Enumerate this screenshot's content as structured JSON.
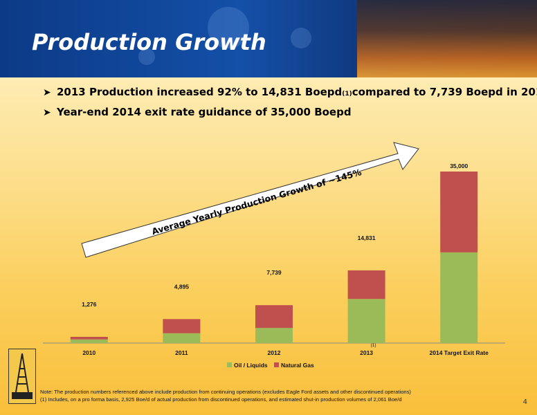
{
  "slide": {
    "title": "Production Growth",
    "page_number": "4"
  },
  "bullets": [
    {
      "text_before": "2013 Production increased 92% to 14,831 Boepd",
      "sup": "(1)",
      "text_after": " compared to 7,739 Boepd in 2012"
    },
    {
      "text_before": "Year-end 2014 exit rate guidance of 35,000 Boepd",
      "sup": "",
      "text_after": ""
    }
  ],
  "notes": {
    "line1": "Note:  The production numbers referenced above include production from continuing operations (excludes Eagle Ford assets and other discontinued operations)",
    "line2": "(1) Includes, on a pro forma basis, 2,925 Boe/d of actual production from discontinued operations, and estimated shut-in production volumes of 2,061 Boe/d"
  },
  "colors": {
    "oil": "#9bbb59",
    "gas": "#c0504d"
  },
  "chart_data": {
    "type": "bar",
    "stacked": true,
    "categories": [
      "2010",
      "2011",
      "2012",
      "2013",
      "2014 Target Exit Rate"
    ],
    "category_footnotes": [
      "",
      "",
      "",
      "(1)",
      ""
    ],
    "series": [
      {
        "name": "Oil / Liquids",
        "values": [
          750,
          2000,
          3100,
          9000,
          18500
        ]
      },
      {
        "name": "Natural Gas",
        "values": [
          526,
          2895,
          4639,
          5831,
          16500
        ]
      }
    ],
    "totals": [
      "1,276",
      "4,895",
      "7,739",
      "14,831",
      "35,000"
    ],
    "annotation": "Average Yearly Production Growth of ~145%",
    "legend_position": "bottom",
    "grid": false,
    "ylim": [
      0,
      35000
    ]
  }
}
